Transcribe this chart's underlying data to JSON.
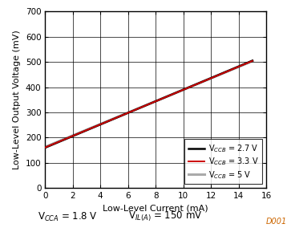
{
  "xlabel": "Low-Level Current (mA)",
  "ylabel": "Low-Level Output Voltage (mV)",
  "xlim": [
    0,
    16
  ],
  "ylim": [
    0,
    700
  ],
  "xticks": [
    0,
    2,
    4,
    6,
    8,
    10,
    12,
    14,
    16
  ],
  "yticks": [
    0,
    100,
    200,
    300,
    400,
    500,
    600,
    700
  ],
  "x_start": 0,
  "x_end": 15,
  "lines": [
    {
      "label": "V$_{CCB}$ = 2.7 V",
      "color": "#000000",
      "lw": 1.8,
      "y0": 160,
      "y1": 505,
      "zorder": 3
    },
    {
      "label": "V$_{CCB}$ = 3.3 V",
      "color": "#cc0000",
      "lw": 1.4,
      "y0": 161,
      "y1": 504,
      "zorder": 4
    },
    {
      "label": "V$_{CCB}$ = 5 V",
      "color": "#aaaaaa",
      "lw": 2.2,
      "y0": 163,
      "y1": 503,
      "zorder": 2
    }
  ],
  "annotation_left": "V$_{CCA}$ = 1.8 V",
  "annotation_right": "V$_{IL(A)}$ = 150 mV",
  "watermark": "D001",
  "bg_color": "#ffffff",
  "legend_fontsize": 7,
  "axis_label_fontsize": 8,
  "tick_fontsize": 7.5,
  "annotation_fontsize": 8.5
}
